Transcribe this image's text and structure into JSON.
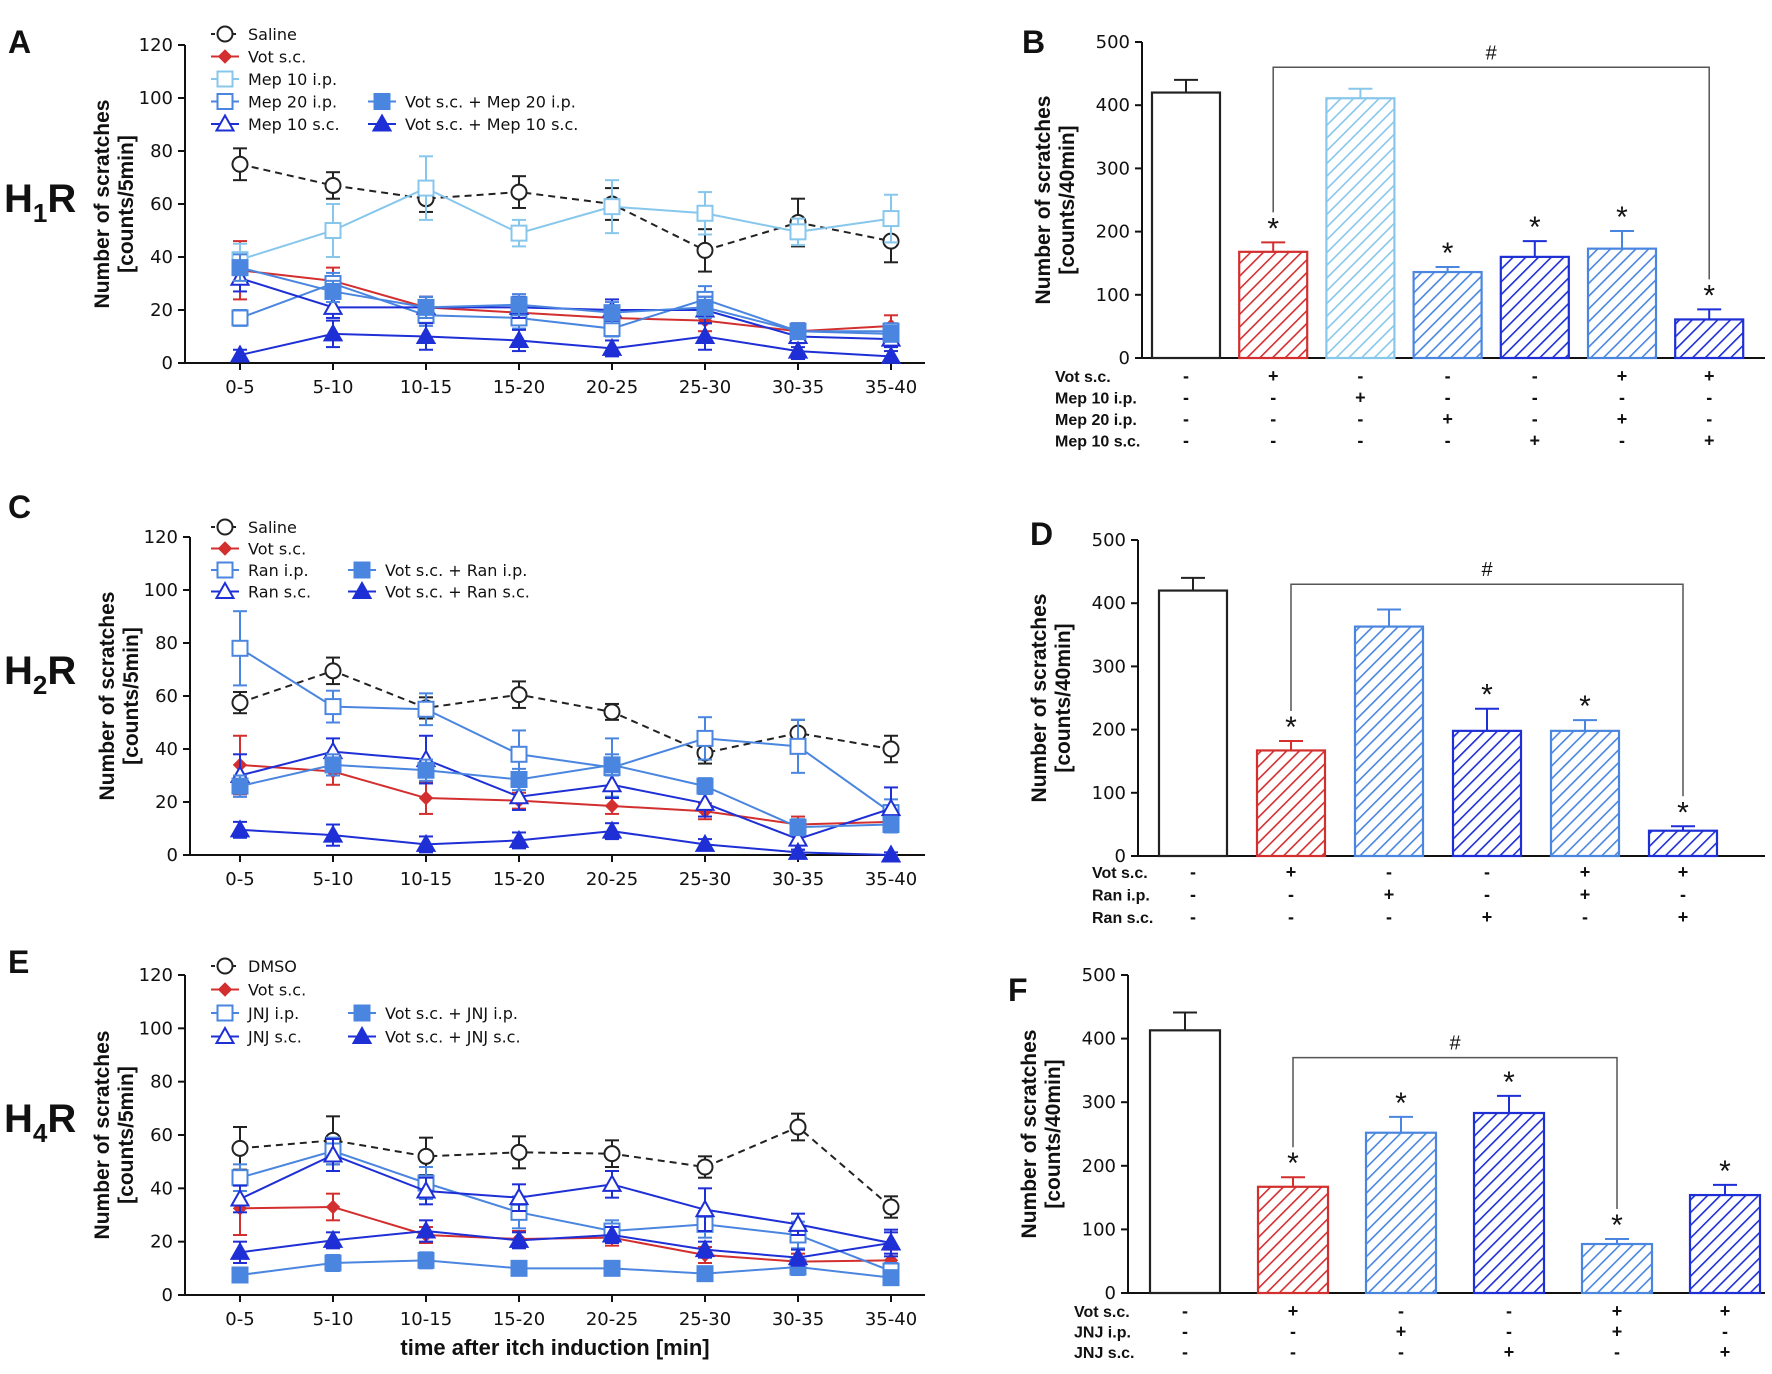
{
  "colors": {
    "saline": "#222222",
    "vot": "#d32f2f",
    "light": "#87c7ec",
    "medium": "#4a86e0",
    "dark": "#1e2fd6",
    "axis": "#111111"
  },
  "chart_data": [
    {
      "id": "A",
      "type": "line",
      "receptor": "H",
      "receptor_sub": "1",
      "receptor_tail": "R",
      "ylabel_line1": "Number of scratches",
      "ylabel_line2": "[counts/5min]",
      "xlabel": "",
      "ylim": [
        0,
        120
      ],
      "yticks": [
        0,
        20,
        40,
        60,
        80,
        100,
        120
      ],
      "categories": [
        "0-5",
        "5-10",
        "10-15",
        "15-20",
        "20-25",
        "25-30",
        "30-35",
        "35-40"
      ],
      "series": [
        {
          "name": "Saline",
          "color": "saline",
          "marker": "circle-open",
          "dashed": true,
          "values": [
            75,
            67,
            62,
            64.5,
            60,
            42.5,
            53,
            46
          ],
          "errors": [
            6,
            5,
            5,
            6,
            6,
            8,
            9,
            8
          ]
        },
        {
          "name": "Vot s.c.",
          "color": "vot",
          "marker": "diamond",
          "dashed": false,
          "values": [
            35,
            31,
            21,
            19,
            17,
            16,
            12,
            14
          ],
          "errors": [
            11,
            5,
            4,
            3,
            4,
            4,
            3,
            4
          ]
        },
        {
          "name": "Mep 10 i.p.",
          "color": "light",
          "marker": "square-open",
          "dashed": false,
          "values": [
            39,
            50,
            66,
            49,
            59,
            56.5,
            49.5,
            54.5
          ],
          "errors": [
            6,
            10,
            12,
            5,
            10,
            8,
            5,
            9
          ]
        },
        {
          "name": "Mep 20 i.p.",
          "color": "medium",
          "marker": "square-open",
          "dashed": false,
          "values": [
            17,
            30,
            18,
            17,
            13,
            24,
            12,
            12
          ],
          "errors": [
            3,
            4,
            4,
            4,
            3,
            5,
            3,
            3
          ]
        },
        {
          "name": "Mep 10 s.c.",
          "color": "dark",
          "marker": "triangle-open",
          "dashed": false,
          "values": [
            32,
            21,
            21,
            21,
            20,
            20,
            10,
            9
          ],
          "errors": [
            5,
            4,
            4,
            4,
            4,
            5,
            4,
            3
          ]
        },
        {
          "name": "Vot s.c. + Mep 20 i.p.",
          "color": "medium",
          "marker": "square",
          "dashed": false,
          "values": [
            36,
            27,
            21,
            22,
            19,
            21,
            12,
            11
          ],
          "errors": [
            5,
            4,
            4,
            4,
            4,
            4,
            3,
            3
          ]
        },
        {
          "name": "Vot s.c. + Mep 10 s.c.",
          "color": "dark",
          "marker": "triangle",
          "dashed": false,
          "values": [
            3,
            11,
            10,
            8.5,
            5.5,
            10,
            4.5,
            2.5
          ],
          "errors": [
            2,
            5,
            5,
            4,
            3,
            5,
            3,
            2
          ]
        }
      ],
      "legend_rows": [
        [
          "Saline"
        ],
        [
          "Vot s.c."
        ],
        [
          "Mep 10 i.p."
        ],
        [
          "Mep 20 i.p.",
          "Vot s.c. + Mep 20 i.p."
        ],
        [
          "Mep 10 s.c.",
          "Vot s.c. + Mep 10 s.c."
        ]
      ]
    },
    {
      "id": "C",
      "type": "line",
      "receptor": "H",
      "receptor_sub": "2",
      "receptor_tail": "R",
      "ylabel_line1": "Number of scratches",
      "ylabel_line2": "[counts/5min]",
      "xlabel": "",
      "ylim": [
        0,
        120
      ],
      "yticks": [
        0,
        20,
        40,
        60,
        80,
        100,
        120
      ],
      "categories": [
        "0-5",
        "5-10",
        "10-15",
        "15-20",
        "20-25",
        "25-30",
        "30-35",
        "35-40"
      ],
      "series": [
        {
          "name": "Saline",
          "color": "saline",
          "marker": "circle-open",
          "dashed": true,
          "values": [
            57.5,
            69.5,
            55.5,
            60.5,
            54,
            38.5,
            46,
            40
          ],
          "errors": [
            4,
            5,
            4,
            5,
            3,
            4,
            5,
            5
          ]
        },
        {
          "name": "Vot s.c.",
          "color": "vot",
          "marker": "diamond",
          "dashed": false,
          "values": [
            34,
            31.5,
            21.5,
            20.5,
            18.5,
            16.5,
            11.5,
            12.5
          ],
          "errors": [
            11,
            5,
            6,
            3,
            3,
            3,
            3,
            3
          ]
        },
        {
          "name": "Ran i.p.",
          "color": "medium",
          "marker": "square-open",
          "dashed": false,
          "values": [
            78,
            56,
            55,
            38,
            33,
            44,
            41,
            16
          ],
          "errors": [
            14,
            6,
            6,
            9,
            11,
            8,
            10,
            5
          ]
        },
        {
          "name": "Ran s.c.",
          "color": "dark",
          "marker": "triangle-open",
          "dashed": false,
          "values": [
            30,
            39,
            36,
            22,
            26.5,
            19.5,
            6,
            17.5
          ],
          "errors": [
            8,
            5,
            9,
            5,
            5,
            5,
            4,
            8
          ]
        },
        {
          "name": "Vot s.c. + Ran i.p.",
          "color": "medium",
          "marker": "square",
          "dashed": false,
          "values": [
            26,
            34,
            32,
            28.5,
            34,
            26,
            10.5,
            11.5
          ],
          "errors": [
            4,
            4,
            4,
            4,
            4,
            3,
            3,
            3
          ]
        },
        {
          "name": "Vot s.c. + Ran s.c.",
          "color": "dark",
          "marker": "triangle",
          "dashed": false,
          "values": [
            9.5,
            7.5,
            4,
            5.5,
            9,
            4,
            1,
            0
          ],
          "errors": [
            3,
            4,
            3,
            3,
            3,
            2,
            1,
            1
          ]
        }
      ],
      "legend_rows": [
        [
          "Saline"
        ],
        [
          "Vot s.c."
        ],
        [
          "Ran i.p.",
          "Vot s.c. + Ran i.p."
        ],
        [
          "Ran s.c.",
          "Vot s.c. + Ran s.c."
        ]
      ]
    },
    {
      "id": "E",
      "type": "line",
      "receptor": "H",
      "receptor_sub": "4",
      "receptor_tail": "R",
      "ylabel_line1": "Number of scratches",
      "ylabel_line2": "[counts/5min]",
      "xlabel": "time after itch induction [min]",
      "ylim": [
        0,
        120
      ],
      "yticks": [
        0,
        20,
        40,
        60,
        80,
        100,
        120
      ],
      "categories": [
        "0-5",
        "5-10",
        "10-15",
        "15-20",
        "20-25",
        "25-30",
        "30-35",
        "35-40"
      ],
      "series": [
        {
          "name": "DMSO",
          "color": "saline",
          "marker": "circle-open",
          "dashed": true,
          "values": [
            55,
            58,
            52,
            53.5,
            53,
            48,
            63,
            33
          ],
          "errors": [
            8,
            9,
            7,
            6,
            5,
            4,
            5,
            4
          ]
        },
        {
          "name": "Vot s.c.",
          "color": "vot",
          "marker": "diamond",
          "dashed": false,
          "values": [
            32.5,
            33,
            22.5,
            21,
            21.5,
            15,
            12.5,
            13
          ],
          "errors": [
            10,
            5,
            3,
            3,
            3,
            3,
            3,
            4
          ]
        },
        {
          "name": "JNJ i.p.",
          "color": "medium",
          "marker": "square-open",
          "dashed": false,
          "values": [
            44,
            54,
            42,
            31,
            24,
            26.5,
            22.5,
            9
          ],
          "errors": [
            5,
            5,
            6,
            6,
            4,
            5,
            5,
            3
          ]
        },
        {
          "name": "JNJ s.c.",
          "color": "dark",
          "marker": "triangle-open",
          "dashed": false,
          "values": [
            36,
            52.5,
            39,
            36.5,
            41.5,
            32,
            26.5,
            19.5
          ],
          "errors": [
            5,
            6,
            5,
            5,
            5,
            8,
            4,
            5
          ]
        },
        {
          "name": "Vot s.c. + JNJ i.p.",
          "color": "medium",
          "marker": "square",
          "dashed": false,
          "values": [
            7.5,
            12,
            13,
            10,
            10,
            8,
            10.5,
            6.5
          ],
          "errors": [
            2,
            3,
            3,
            2,
            2,
            2,
            3,
            2
          ]
        },
        {
          "name": "Vot s.c. + JNJ s.c.",
          "color": "dark",
          "marker": "triangle",
          "dashed": false,
          "values": [
            16,
            20.5,
            24,
            20.5,
            22.5,
            17,
            14,
            19.5
          ],
          "errors": [
            4,
            3,
            4,
            3,
            3,
            3,
            3,
            4
          ]
        }
      ],
      "legend_rows": [
        [
          "DMSO"
        ],
        [
          "Vot s.c."
        ],
        [
          "JNJ i.p.",
          "Vot s.c. + JNJ i.p."
        ],
        [
          "JNJ s.c.",
          "Vot s.c. + JNJ s.c."
        ]
      ]
    },
    {
      "id": "B",
      "type": "bar",
      "ylabel_line1": "Number of scratches",
      "ylabel_line2": "[counts/40min]",
      "ylim": [
        0,
        500
      ],
      "yticks": [
        0,
        100,
        200,
        300,
        400,
        500
      ],
      "bars": [
        {
          "value": 420,
          "error": 20,
          "fill": "white",
          "color": "saline",
          "star": ""
        },
        {
          "value": 168,
          "error": 15,
          "fill": "hatch",
          "color": "vot",
          "star": "*"
        },
        {
          "value": 411,
          "error": 15,
          "fill": "hatch",
          "color": "light",
          "star": ""
        },
        {
          "value": 136,
          "error": 8,
          "fill": "hatch",
          "color": "medium",
          "star": "*"
        },
        {
          "value": 160,
          "error": 25,
          "fill": "hatch",
          "color": "dark",
          "star": "*"
        },
        {
          "value": 173,
          "error": 28,
          "fill": "hatch",
          "color": "medium",
          "star": "*"
        },
        {
          "value": 61,
          "error": 16,
          "fill": "hatch",
          "color": "dark",
          "star": "*"
        }
      ],
      "bracket": {
        "from": 1,
        "to": 6,
        "y": 460,
        "label": "#"
      },
      "treatments": [
        {
          "label": "Vot s.c.",
          "signs": [
            "-",
            "+",
            "-",
            "-",
            "-",
            "+",
            "+"
          ]
        },
        {
          "label": "Mep 10 i.p.",
          "signs": [
            "-",
            "-",
            "+",
            "-",
            "-",
            "-",
            "-"
          ]
        },
        {
          "label": "Mep 20 i.p.",
          "signs": [
            "-",
            "-",
            "-",
            "+",
            "-",
            "+",
            "-"
          ]
        },
        {
          "label": "Mep 10 s.c.",
          "signs": [
            "-",
            "-",
            "-",
            "-",
            "+",
            "-",
            "+"
          ]
        }
      ]
    },
    {
      "id": "D",
      "type": "bar",
      "ylabel_line1": "Number of scratches",
      "ylabel_line2": "[counts/40min]",
      "ylim": [
        0,
        500
      ],
      "yticks": [
        0,
        100,
        200,
        300,
        400,
        500
      ],
      "bars": [
        {
          "value": 420,
          "error": 20,
          "fill": "white",
          "color": "saline",
          "star": ""
        },
        {
          "value": 167,
          "error": 15,
          "fill": "hatch",
          "color": "vot",
          "star": "*"
        },
        {
          "value": 363,
          "error": 27,
          "fill": "hatch",
          "color": "medium",
          "star": ""
        },
        {
          "value": 198,
          "error": 35,
          "fill": "hatch",
          "color": "dark",
          "star": "*"
        },
        {
          "value": 198,
          "error": 17,
          "fill": "hatch",
          "color": "medium",
          "star": "*"
        },
        {
          "value": 40,
          "error": 7,
          "fill": "hatch",
          "color": "dark",
          "star": "*"
        }
      ],
      "bracket": {
        "from": 1,
        "to": 5,
        "y": 430,
        "label": "#"
      },
      "treatments": [
        {
          "label": "Vot s.c.",
          "signs": [
            "-",
            "+",
            "-",
            "-",
            "+",
            "+"
          ]
        },
        {
          "label": "Ran i.p.",
          "signs": [
            "-",
            "-",
            "+",
            "-",
            "+",
            "-"
          ]
        },
        {
          "label": "Ran s.c.",
          "signs": [
            "-",
            "-",
            "-",
            "+",
            "-",
            "+"
          ]
        }
      ]
    },
    {
      "id": "F",
      "type": "bar",
      "ylabel_line1": "Number of scratches",
      "ylabel_line2": "[counts/40min]",
      "ylim": [
        0,
        500
      ],
      "yticks": [
        0,
        100,
        200,
        300,
        400,
        500
      ],
      "bars": [
        {
          "value": 413,
          "error": 28,
          "fill": "white",
          "color": "saline",
          "star": ""
        },
        {
          "value": 167,
          "error": 15,
          "fill": "hatch",
          "color": "vot",
          "star": "*"
        },
        {
          "value": 252,
          "error": 25,
          "fill": "hatch",
          "color": "medium",
          "star": "*"
        },
        {
          "value": 283,
          "error": 27,
          "fill": "hatch",
          "color": "dark",
          "star": "*"
        },
        {
          "value": 77,
          "error": 8,
          "fill": "hatch",
          "color": "medium",
          "star": "*"
        },
        {
          "value": 154,
          "error": 16,
          "fill": "hatch",
          "color": "dark",
          "star": "*"
        }
      ],
      "bracket": {
        "from": 1,
        "to": 4,
        "y": 370,
        "label": "#"
      },
      "treatments": [
        {
          "label": "Vot s.c.",
          "signs": [
            "-",
            "+",
            "-",
            "-",
            "+",
            "+"
          ]
        },
        {
          "label": "JNJ i.p.",
          "signs": [
            "-",
            "-",
            "+",
            "-",
            "+",
            "-"
          ]
        },
        {
          "label": "JNJ s.c.",
          "signs": [
            "-",
            "-",
            "-",
            "+",
            "-",
            "+"
          ]
        }
      ]
    }
  ]
}
